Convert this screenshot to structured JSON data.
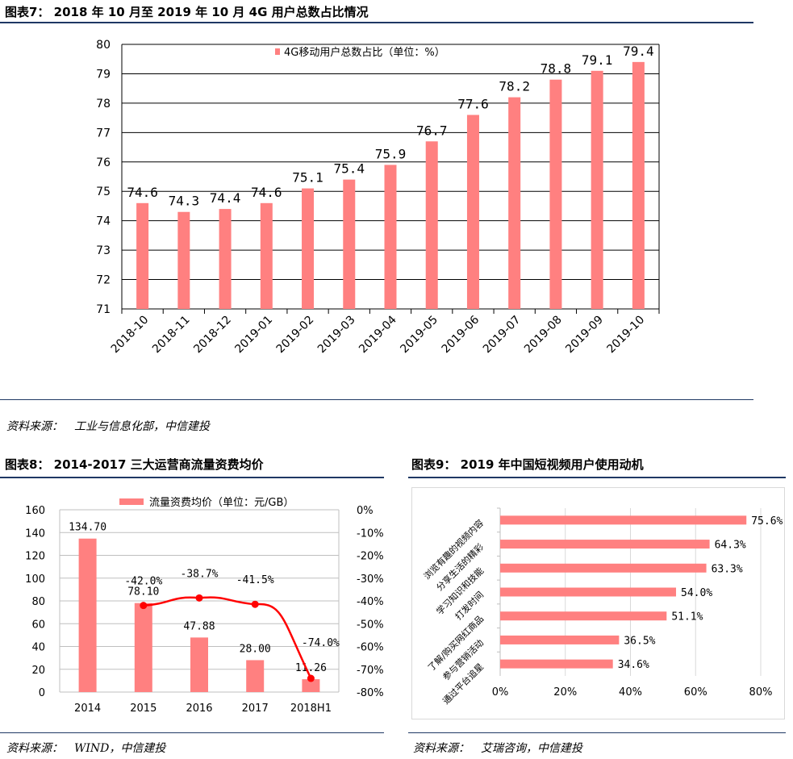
{
  "fig7": {
    "title": "图表7： 2018 年 10 月至 2019 年 10 月 4G 用户总数占比情况",
    "source": "资料来源：　工业与信息化部，中信建投",
    "chart_data": {
      "type": "bar",
      "categories": [
        "2018-10",
        "2018-11",
        "2018-12",
        "2019-01",
        "2019-02",
        "2019-03",
        "2019-04",
        "2019-05",
        "2019-06",
        "2019-07",
        "2019-08",
        "2019-09",
        "2019-10"
      ],
      "series": [
        {
          "name": "4G移动用户总数占比（单位：%）",
          "values": [
            74.6,
            74.3,
            74.4,
            74.6,
            75.1,
            75.4,
            75.9,
            76.7,
            77.6,
            78.2,
            78.8,
            79.1,
            79.4
          ]
        }
      ],
      "data_labels": [
        "74.6",
        "74.3",
        "74.4",
        "74.6",
        "75.1",
        "75.4",
        "75.9",
        "76.7",
        "77.6",
        "78.2",
        "78.8",
        "79.1",
        "79.4"
      ],
      "yticks": [
        "71",
        "72",
        "73",
        "74",
        "75",
        "76",
        "77",
        "78",
        "79",
        "80"
      ],
      "ylim": [
        71,
        80
      ],
      "grid": true,
      "legend": "top",
      "color": "#ff8080"
    }
  },
  "fig8": {
    "title": "图表8： 2014-2017 三大运营商流量资费均价",
    "source": "资料来源：　WIND，中信建投",
    "chart_data": {
      "type": "bar",
      "categories": [
        "2014",
        "2015",
        "2016",
        "2017",
        "2018H1"
      ],
      "series": [
        {
          "name": "流量资费均价（单位：元/GB）",
          "type": "bar",
          "values": [
            134.7,
            78.1,
            47.88,
            28.0,
            11.26
          ],
          "labels": [
            "134.70",
            "78.10",
            "47.88",
            "28.00",
            "11.26"
          ]
        },
        {
          "type": "line",
          "values": [
            null,
            -42.0,
            -38.7,
            -41.5,
            -74.0
          ],
          "labels": [
            "",
            "-42.0%",
            "-38.7%",
            "-41.5%",
            "-74.0%"
          ]
        }
      ],
      "yticks_left": [
        "0",
        "20",
        "40",
        "60",
        "80",
        "100",
        "120",
        "140",
        "160"
      ],
      "yticks_right": [
        "0%",
        "-10%",
        "-20%",
        "-30%",
        "-40%",
        "-50%",
        "-60%",
        "-70%",
        "-80%"
      ],
      "ylim_left": [
        0,
        160
      ],
      "ylim_right": [
        -80,
        0
      ],
      "grid": true,
      "legend": "top",
      "bar_color": "#ff8080",
      "line_color": "#ff0000"
    }
  },
  "fig9": {
    "title": "图表9： 2019 年中国短视频用户使用动机",
    "source": "资料来源：　艾瑞咨询，中信建投",
    "chart_data": {
      "type": "bar",
      "orientation": "horizontal",
      "categories": [
        "浏览有趣的视频内容",
        "分享生活的精彩",
        "学习知识和技能",
        "打发时间",
        "了解/购买网红商品",
        "参与营销活动",
        "通过平台追星"
      ],
      "values": [
        75.6,
        64.3,
        63.3,
        54.0,
        51.1,
        36.5,
        34.6
      ],
      "data_labels": [
        "75.6%",
        "64.3%",
        "63.3%",
        "54.0%",
        "51.1%",
        "36.5%",
        "34.6%"
      ],
      "xticks": [
        "0%",
        "20%",
        "40%",
        "60%",
        "80%"
      ],
      "xlim": [
        0,
        80
      ],
      "grid": true,
      "color": "#ff8080"
    }
  }
}
